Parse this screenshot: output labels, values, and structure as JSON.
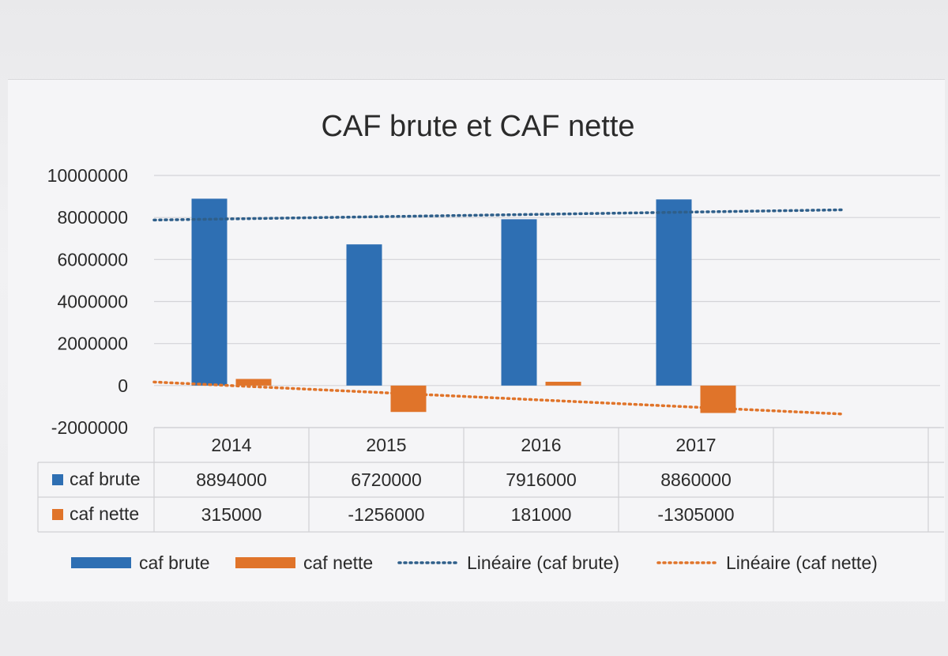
{
  "chart_data": {
    "type": "bar",
    "title": "CAF brute et CAF nette",
    "categories": [
      "2014",
      "2015",
      "2016",
      "2017"
    ],
    "series": [
      {
        "name": "caf brute",
        "values": [
          8894000,
          6720000,
          7916000,
          8860000
        ],
        "color": "#2e6fb3"
      },
      {
        "name": "caf nette",
        "values": [
          315000,
          -1256000,
          181000,
          -1305000
        ],
        "color": "#e0742a"
      }
    ],
    "trendlines": [
      {
        "name": "Linéaire (caf brute)",
        "series": "caf brute",
        "color": "#2f5f8a"
      },
      {
        "name": "Linéaire (caf nette)",
        "series": "caf nette",
        "color": "#e0742a"
      }
    ],
    "yticks": [
      "10000000",
      "8000000",
      "6000000",
      "4000000",
      "2000000",
      "0",
      "-2000000"
    ],
    "ylim": [
      -2000000,
      10000000
    ],
    "grid": true,
    "data_table": true,
    "legend": "bottom"
  }
}
